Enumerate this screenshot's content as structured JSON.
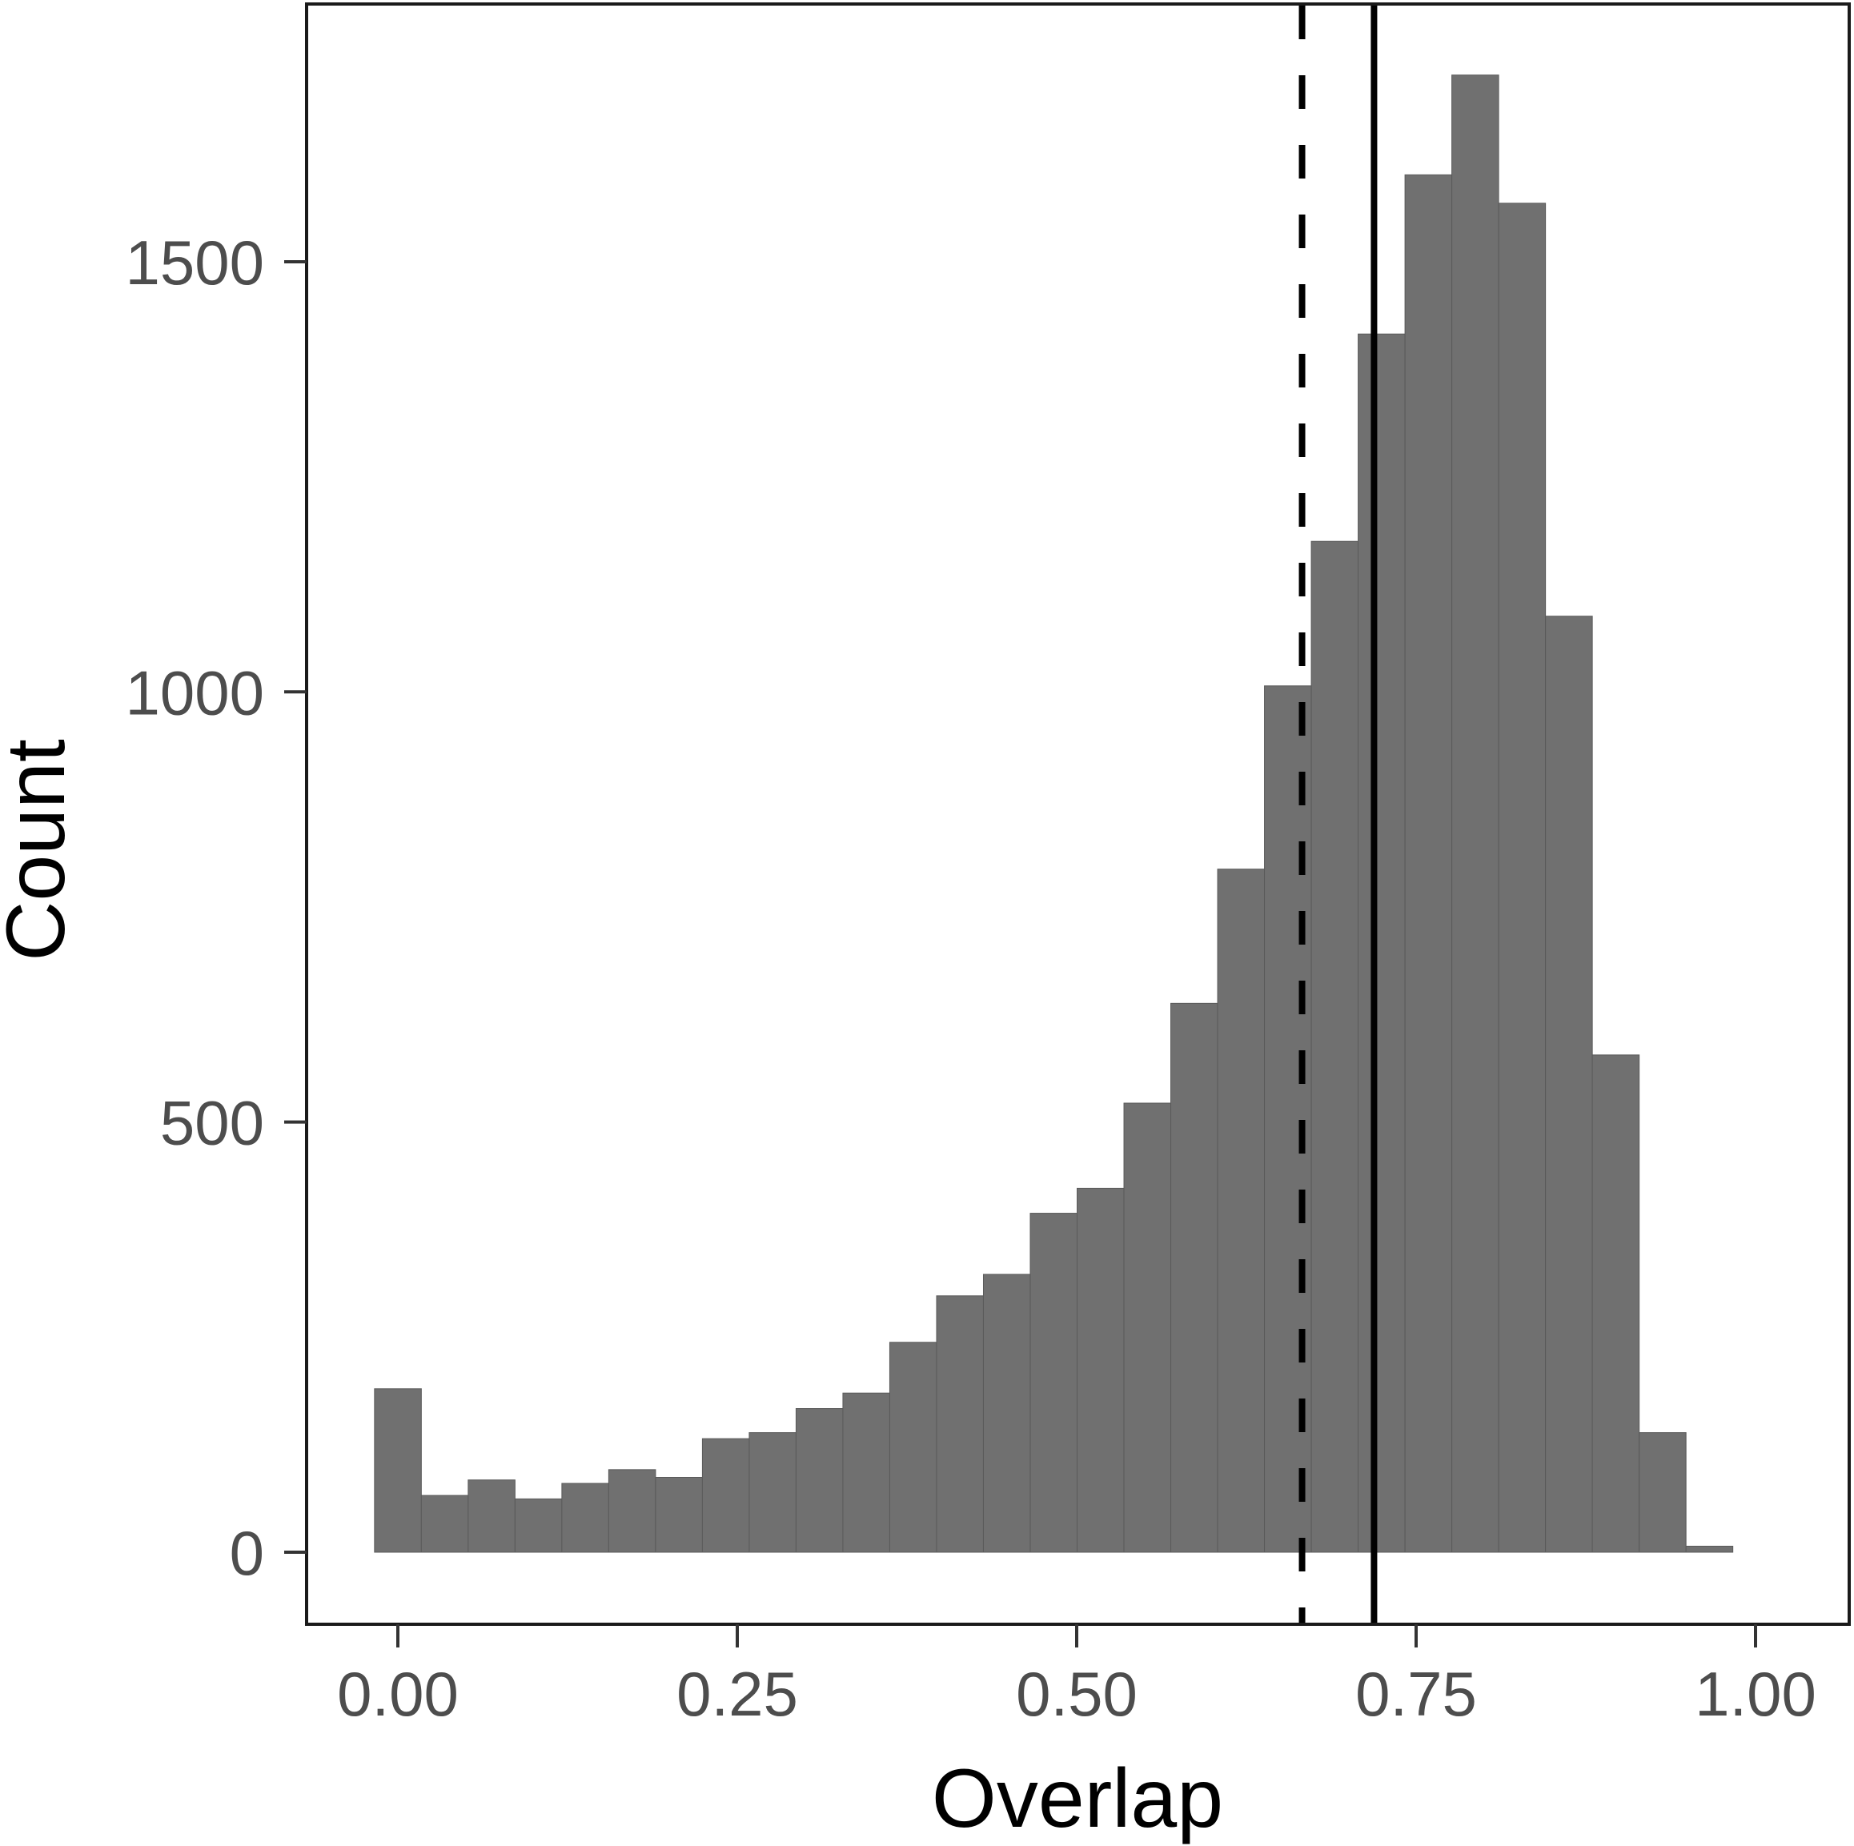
{
  "chart_data": {
    "type": "bar",
    "subtype": "histogram",
    "title": "",
    "xlabel": "Overlap",
    "ylabel": "Count",
    "xlim": [
      -0.095,
      1.072
    ],
    "ylim": [
      -170,
      1787
    ],
    "x_ticks": [
      0.0,
      0.25,
      0.5,
      0.75,
      1.0
    ],
    "x_tick_labels": [
      "0.00",
      "0.25",
      "0.50",
      "0.75",
      "1.00"
    ],
    "y_ticks": [
      0,
      500,
      1000,
      1500
    ],
    "y_tick_labels": [
      "0",
      "500",
      "1000",
      "1500"
    ],
    "grid": false,
    "legend": null,
    "bin_width": 0.0345,
    "bin_start": -0.0172,
    "bins": 29,
    "bin_centers": [
      0.0,
      0.0345,
      0.069,
      0.1034,
      0.1379,
      0.1724,
      0.2069,
      0.2414,
      0.2759,
      0.3103,
      0.3448,
      0.3793,
      0.4138,
      0.4483,
      0.4828,
      0.5172,
      0.5517,
      0.5862,
      0.6207,
      0.6552,
      0.6897,
      0.7241,
      0.7586,
      0.7931,
      0.8276,
      0.8621,
      0.8966,
      0.931,
      0.9655
    ],
    "values": [
      190,
      66,
      84,
      62,
      80,
      96,
      87,
      132,
      139,
      167,
      185,
      244,
      298,
      323,
      394,
      423,
      522,
      638,
      794,
      1007,
      1175,
      1416,
      1601,
      1717,
      1568,
      1088,
      578,
      139,
      7
    ],
    "bar_color": "#707070",
    "reference_lines": [
      {
        "x": 0.666,
        "style": "dashed",
        "color": "#000000"
      },
      {
        "x": 0.719,
        "style": "solid",
        "color": "#000000"
      }
    ]
  }
}
